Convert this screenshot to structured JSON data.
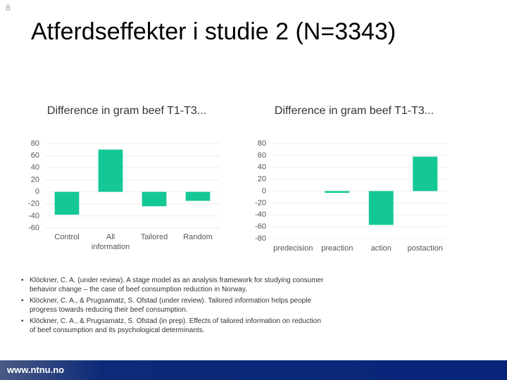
{
  "slide_number": "8",
  "title": "Atferdseffekter i studie 2 (N=3343)",
  "chart_data": [
    {
      "type": "bar",
      "title": "Difference in gram beef T1-T3...",
      "categories": [
        "Control",
        "All information",
        "Tailored",
        "Random"
      ],
      "values": [
        -38,
        70,
        -24,
        -15
      ],
      "color": "#14c896",
      "ylim": [
        -60,
        80
      ],
      "yticks": [
        -60,
        -40,
        -20,
        0,
        20,
        40,
        60,
        80
      ],
      "grid": true
    },
    {
      "type": "bar",
      "title": "Difference in gram beef T1-T3...",
      "categories": [
        "predecision",
        "preaction",
        "action",
        "postaction"
      ],
      "values": [
        0,
        -3,
        -57,
        58
      ],
      "color": "#14c896",
      "ylim": [
        -80,
        80
      ],
      "yticks": [
        -80,
        -60,
        -40,
        -20,
        0,
        20,
        40,
        60,
        80
      ],
      "grid": true
    }
  ],
  "references": [
    "Klöckner, C. A. (under review). A stage model as an analysis framework for studying consumer behavior change – the case of beef consumption reduction in Norway.",
    "Klöckner, C. A., & Prugsamatz, S. Ofstad (under review). Tailored information helps people progress towards reducing their beef consumption.",
    "Klöckner, C. A., & Prugsamatz, S. Ofstad (in prep). Effects of tailored information on reduction of beef consumption and its psychological determinants."
  ],
  "footer": "www.ntnu.no"
}
